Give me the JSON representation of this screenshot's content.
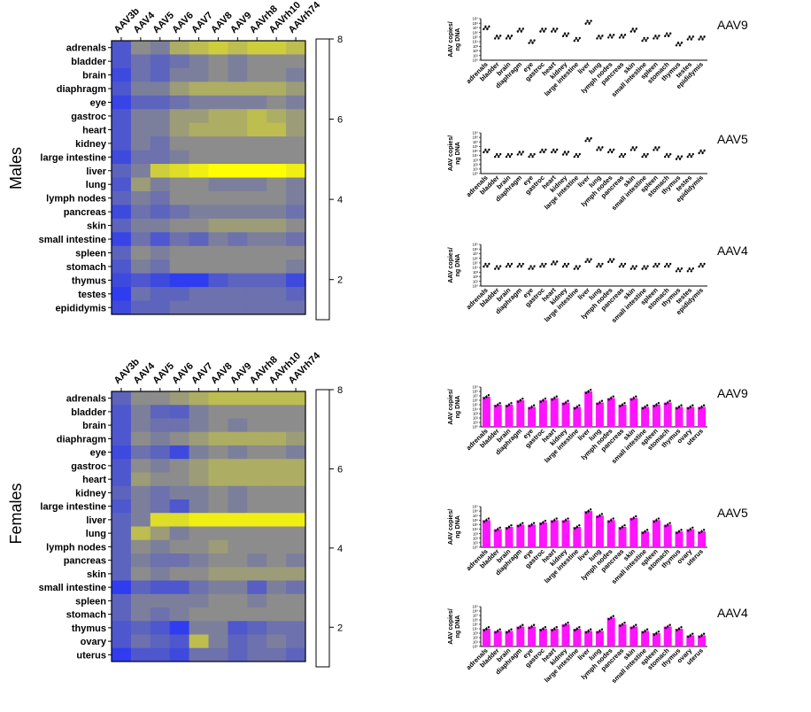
{
  "title": "",
  "panel_labels": {
    "males": "Males",
    "females": "Females"
  },
  "colors": {
    "low": "#1f2fff",
    "mid": "#8c8c8c",
    "high": "#ffff00",
    "bar_fill": "#ff14ff",
    "dot": "#000000"
  },
  "chart_data": [
    {
      "type": "heatmap",
      "panel": "Males",
      "xcategories": [
        "AAV3b",
        "AAV4",
        "AAV5",
        "AAV6",
        "AAV7",
        "AAV8",
        "AAV9",
        "AAVrh8",
        "AAVrh10",
        "AAVrh74"
      ],
      "ycategories": [
        "adrenals",
        "bladder",
        "brain",
        "diaphragm",
        "eye",
        "gastroc",
        "heart",
        "kidney",
        "large intestine",
        "liver",
        "lung",
        "lymph nodes",
        "pancreas",
        "skin",
        "small intestine",
        "spleen",
        "stomach",
        "thymus",
        "testes",
        "epididymis"
      ],
      "colorbar": {
        "min": 1,
        "max": 8,
        "ticks": [
          2,
          4,
          6,
          8
        ]
      },
      "values": [
        [
          2.5,
          4.5,
          4.0,
          5.5,
          6.0,
          6.5,
          6.0,
          6.5,
          6.5,
          6.0
        ],
        [
          2.5,
          3.5,
          3.0,
          3.5,
          4.0,
          4.5,
          4.0,
          4.5,
          4.5,
          4.5
        ],
        [
          2.0,
          3.5,
          3.0,
          4.0,
          4.0,
          4.5,
          4.0,
          4.5,
          4.5,
          4.0
        ],
        [
          2.5,
          4.0,
          4.0,
          5.0,
          5.5,
          5.5,
          5.5,
          5.5,
          5.5,
          5.0
        ],
        [
          1.8,
          3.0,
          3.0,
          3.5,
          4.0,
          4.0,
          4.0,
          4.0,
          4.5,
          4.0
        ],
        [
          2.5,
          4.0,
          4.0,
          5.0,
          5.0,
          5.5,
          5.5,
          6.0,
          5.5,
          5.0
        ],
        [
          2.5,
          4.0,
          4.0,
          5.0,
          5.5,
          5.5,
          5.5,
          6.0,
          6.0,
          5.0
        ],
        [
          2.5,
          4.0,
          3.5,
          4.5,
          4.5,
          4.5,
          4.5,
          4.5,
          4.5,
          4.5
        ],
        [
          2.0,
          3.5,
          3.5,
          4.0,
          4.5,
          4.5,
          4.5,
          4.5,
          4.5,
          4.5
        ],
        [
          3.0,
          4.0,
          6.5,
          7.0,
          7.5,
          8.0,
          8.0,
          8.0,
          8.0,
          7.5
        ],
        [
          2.5,
          5.0,
          4.0,
          4.5,
          4.5,
          4.0,
          4.0,
          4.0,
          4.5,
          4.0
        ],
        [
          3.0,
          4.0,
          3.5,
          4.5,
          4.5,
          4.5,
          4.5,
          4.5,
          4.5,
          4.0
        ],
        [
          2.0,
          3.5,
          3.0,
          3.5,
          4.0,
          4.0,
          4.0,
          4.0,
          4.0,
          3.5
        ],
        [
          3.0,
          4.0,
          4.0,
          4.5,
          4.5,
          5.0,
          5.0,
          5.0,
          5.0,
          4.5
        ],
        [
          1.8,
          3.5,
          2.5,
          3.5,
          3.0,
          4.0,
          3.5,
          4.0,
          4.0,
          3.5
        ],
        [
          3.0,
          4.5,
          4.0,
          4.5,
          4.5,
          4.5,
          4.5,
          4.5,
          4.5,
          4.5
        ],
        [
          2.5,
          4.0,
          3.5,
          4.5,
          4.5,
          4.5,
          4.5,
          4.5,
          4.5,
          4.0
        ],
        [
          2.0,
          2.5,
          2.0,
          1.5,
          1.5,
          2.5,
          3.0,
          3.0,
          3.0,
          2.0
        ],
        [
          1.5,
          3.5,
          3.0,
          3.0,
          3.5,
          3.5,
          3.5,
          3.5,
          3.5,
          3.0
        ],
        [
          2.0,
          3.0,
          3.0,
          3.5,
          3.5,
          3.5,
          3.5,
          3.5,
          3.5,
          3.5
        ]
      ]
    },
    {
      "type": "heatmap",
      "panel": "Females",
      "xcategories": [
        "AAV3b",
        "AAV4",
        "AAV5",
        "AAV6",
        "AAV7",
        "AAV8",
        "AAV9",
        "AAVrh8",
        "AAVrh10",
        "AAVrh74"
      ],
      "ycategories": [
        "adrenals",
        "bladder",
        "brain",
        "diaphragm",
        "eye",
        "gastroc",
        "heart",
        "kidney",
        "large intestine",
        "liver",
        "lung",
        "lymph nodes",
        "pancreas",
        "skin",
        "small intestine",
        "spleen",
        "stomach",
        "thymus",
        "ovary",
        "uterus"
      ],
      "colorbar": {
        "min": 1,
        "max": 8,
        "ticks": [
          2,
          4,
          6,
          8
        ]
      },
      "values": [
        [
          3.0,
          4.5,
          4.5,
          5.0,
          5.5,
          6.0,
          6.0,
          6.0,
          6.0,
          6.0
        ],
        [
          2.5,
          4.0,
          3.0,
          2.8,
          4.0,
          4.5,
          4.5,
          4.5,
          4.5,
          4.5
        ],
        [
          2.5,
          4.0,
          3.5,
          3.5,
          4.0,
          4.5,
          4.0,
          4.5,
          4.5,
          4.5
        ],
        [
          2.5,
          4.5,
          4.0,
          4.5,
          5.0,
          5.5,
          5.5,
          5.5,
          5.5,
          5.0
        ],
        [
          2.0,
          3.5,
          3.0,
          2.0,
          4.0,
          4.5,
          4.0,
          4.5,
          4.5,
          4.0
        ],
        [
          2.5,
          4.5,
          4.0,
          4.5,
          5.0,
          5.5,
          5.5,
          5.5,
          5.5,
          5.5
        ],
        [
          2.5,
          5.0,
          4.5,
          4.5,
          5.0,
          5.5,
          5.5,
          5.5,
          5.5,
          5.5
        ],
        [
          3.0,
          4.0,
          3.5,
          4.0,
          4.0,
          4.5,
          4.0,
          4.5,
          4.5,
          4.5
        ],
        [
          2.5,
          4.0,
          3.5,
          2.5,
          4.0,
          4.5,
          4.0,
          4.5,
          4.5,
          4.5
        ],
        [
          3.0,
          4.0,
          7.0,
          7.0,
          7.5,
          7.5,
          7.5,
          7.5,
          7.5,
          7.5
        ],
        [
          3.0,
          6.0,
          5.0,
          4.0,
          4.5,
          4.5,
          4.5,
          4.5,
          4.5,
          4.5
        ],
        [
          3.0,
          4.5,
          4.0,
          4.5,
          4.5,
          5.0,
          4.5,
          4.5,
          4.5,
          4.5
        ],
        [
          3.0,
          4.0,
          3.5,
          3.5,
          4.0,
          4.5,
          4.5,
          4.0,
          4.5,
          4.0
        ],
        [
          3.0,
          4.5,
          4.0,
          4.5,
          4.5,
          5.0,
          5.0,
          5.0,
          5.0,
          5.0
        ],
        [
          1.5,
          3.0,
          2.5,
          2.5,
          3.5,
          4.0,
          4.0,
          2.8,
          4.0,
          3.5
        ],
        [
          3.0,
          4.0,
          4.0,
          4.0,
          4.0,
          4.5,
          4.5,
          4.0,
          4.5,
          4.5
        ],
        [
          3.0,
          4.0,
          3.5,
          4.0,
          4.5,
          4.5,
          4.5,
          4.5,
          4.5,
          4.5
        ],
        [
          2.5,
          3.0,
          2.5,
          1.5,
          4.0,
          4.0,
          2.5,
          3.0,
          3.5,
          3.5
        ],
        [
          2.5,
          3.5,
          3.0,
          2.5,
          6.0,
          4.0,
          3.0,
          3.5,
          4.0,
          3.5
        ],
        [
          1.5,
          2.5,
          2.5,
          2.0,
          3.5,
          3.5,
          3.0,
          3.5,
          3.5,
          3.0
        ]
      ]
    },
    {
      "type": "scatter",
      "panel": "Males",
      "title": "AAV9",
      "ylabel": "AAV copies/ ng DNA",
      "categories": [
        "adrenals",
        "bladder",
        "brain",
        "diaphragm",
        "eye",
        "gastroc",
        "heart",
        "kidney",
        "large intestine",
        "liver",
        "lung",
        "lymph nodes",
        "pancreas",
        "skin",
        "small intestine",
        "spleen",
        "stomach",
        "thymus",
        "testes",
        "epididymis"
      ],
      "ylim": [
        0,
        9
      ],
      "yticks": [
        "10⁰",
        "10¹",
        "10²",
        "10³",
        "10⁴",
        "10⁵",
        "10⁶",
        "10⁷",
        "10⁸",
        "10⁹"
      ],
      "values": [
        7.0,
        5.0,
        5.0,
        6.5,
        4.0,
        6.5,
        6.5,
        5.5,
        4.5,
        8.2,
        5.0,
        5.2,
        5.2,
        6.5,
        4.5,
        5.0,
        5.5,
        3.5,
        4.8,
        4.8
      ]
    },
    {
      "type": "scatter",
      "panel": "Males",
      "title": "AAV5",
      "ylabel": "AAV copies/ ng DNA",
      "categories": [
        "adrenals",
        "bladder",
        "brain",
        "diaphragm",
        "eye",
        "gastroc",
        "heart",
        "kidney",
        "large intestine",
        "liver",
        "lung",
        "lymph nodes",
        "pancreas",
        "skin",
        "small intestine",
        "spleen",
        "stomach",
        "thymus",
        "testes",
        "epididymis"
      ],
      "ylim": [
        0,
        9
      ],
      "yticks": [
        "10⁰",
        "10¹",
        "10²",
        "10³",
        "10⁴",
        "10⁵",
        "10⁶",
        "10⁷",
        "10⁸",
        "10⁹"
      ],
      "values": [
        5.0,
        4.0,
        4.0,
        4.5,
        4.0,
        5.0,
        5.0,
        4.5,
        4.0,
        7.5,
        5.5,
        5.0,
        4.0,
        5.5,
        4.0,
        5.5,
        4.0,
        3.5,
        4.0,
        4.8
      ]
    },
    {
      "type": "scatter",
      "panel": "Males",
      "title": "AAV4",
      "ylabel": "AAV copies/ ng DNA",
      "categories": [
        "adrenals",
        "bladder",
        "brain",
        "diaphragm",
        "eye",
        "gastroc",
        "heart",
        "kidney",
        "large intestine",
        "liver",
        "lung",
        "lymph nodes",
        "pancreas",
        "skin",
        "small intestine",
        "spleen",
        "stomach",
        "thymus",
        "testes",
        "epididymis"
      ],
      "ylim": [
        0,
        9
      ],
      "yticks": [
        "10⁰",
        "10¹",
        "10²",
        "10³",
        "10⁴",
        "10⁵",
        "10⁶",
        "10⁷",
        "10⁸",
        "10⁹"
      ],
      "values": [
        4.5,
        4.0,
        4.5,
        4.5,
        4.0,
        4.5,
        5.0,
        4.5,
        4.0,
        5.5,
        4.5,
        5.5,
        4.5,
        4.0,
        4.0,
        4.5,
        4.5,
        3.5,
        3.5,
        4.5
      ]
    },
    {
      "type": "bar",
      "panel": "Females",
      "title": "AAV9",
      "ylabel": "AAV copies/ ng DNA",
      "categories": [
        "adrenals",
        "bladder",
        "brain",
        "diaphragm",
        "eye",
        "gastroc",
        "heart",
        "kidney",
        "large intestine",
        "liver",
        "lung",
        "lymph nodes",
        "pancreas",
        "skin",
        "small intestine",
        "spleen",
        "stomach",
        "thymus",
        "ovary",
        "uterus"
      ],
      "ylim": [
        0,
        9
      ],
      "yticks": [
        "10⁰",
        "10¹",
        "10²",
        "10³",
        "10⁴",
        "10⁵",
        "10⁶",
        "10⁷",
        "10⁸",
        "10⁹"
      ],
      "values": [
        6.8,
        5.0,
        5.0,
        6.0,
        4.5,
        6.0,
        6.5,
        5.5,
        4.5,
        8.0,
        5.5,
        6.5,
        5.0,
        6.5,
        4.5,
        5.0,
        5.5,
        4.5,
        4.5,
        4.5
      ]
    },
    {
      "type": "bar",
      "panel": "Females",
      "title": "AAV5",
      "ylabel": "AAV copies/ ng DNA",
      "categories": [
        "adrenals",
        "bladder",
        "brain",
        "diaphragm",
        "eye",
        "gastroc",
        "heart",
        "kidney",
        "large intestine",
        "liver",
        "lung",
        "lymph nodes",
        "pancreas",
        "skin",
        "small intestine",
        "spleen",
        "stomach",
        "thymus",
        "ovary",
        "uterus"
      ],
      "ylim": [
        0,
        9
      ],
      "yticks": [
        "10⁰",
        "10¹",
        "10²",
        "10³",
        "10⁴",
        "10⁵",
        "10⁶",
        "10⁷",
        "10⁸",
        "10⁹"
      ],
      "values": [
        6.0,
        4.0,
        4.5,
        5.0,
        5.0,
        5.5,
        6.0,
        6.0,
        4.5,
        8.0,
        7.0,
        6.0,
        4.5,
        6.5,
        3.5,
        6.0,
        5.0,
        3.5,
        4.0,
        3.5
      ]
    },
    {
      "type": "bar",
      "panel": "Females",
      "title": "AAV4",
      "ylabel": "AAV copies/ ng DNA",
      "categories": [
        "adrenals",
        "bladder",
        "brain",
        "diaphragm",
        "eye",
        "gastroc",
        "heart",
        "kidney",
        "large intestine",
        "liver",
        "lung",
        "lymph nodes",
        "pancreas",
        "skin",
        "small intestine",
        "spleen",
        "stomach",
        "thymus",
        "ovary",
        "uterus"
      ],
      "ylim": [
        0,
        9
      ],
      "yticks": [
        "10⁰",
        "10¹",
        "10²",
        "10³",
        "10⁴",
        "10⁵",
        "10⁶",
        "10⁷",
        "10⁸",
        "10⁹"
      ],
      "values": [
        4.0,
        3.5,
        3.5,
        4.5,
        4.5,
        4.0,
        4.0,
        5.0,
        4.0,
        3.5,
        3.5,
        6.5,
        5.0,
        4.5,
        3.5,
        3.0,
        4.5,
        4.0,
        2.5,
        2.5
      ]
    }
  ]
}
